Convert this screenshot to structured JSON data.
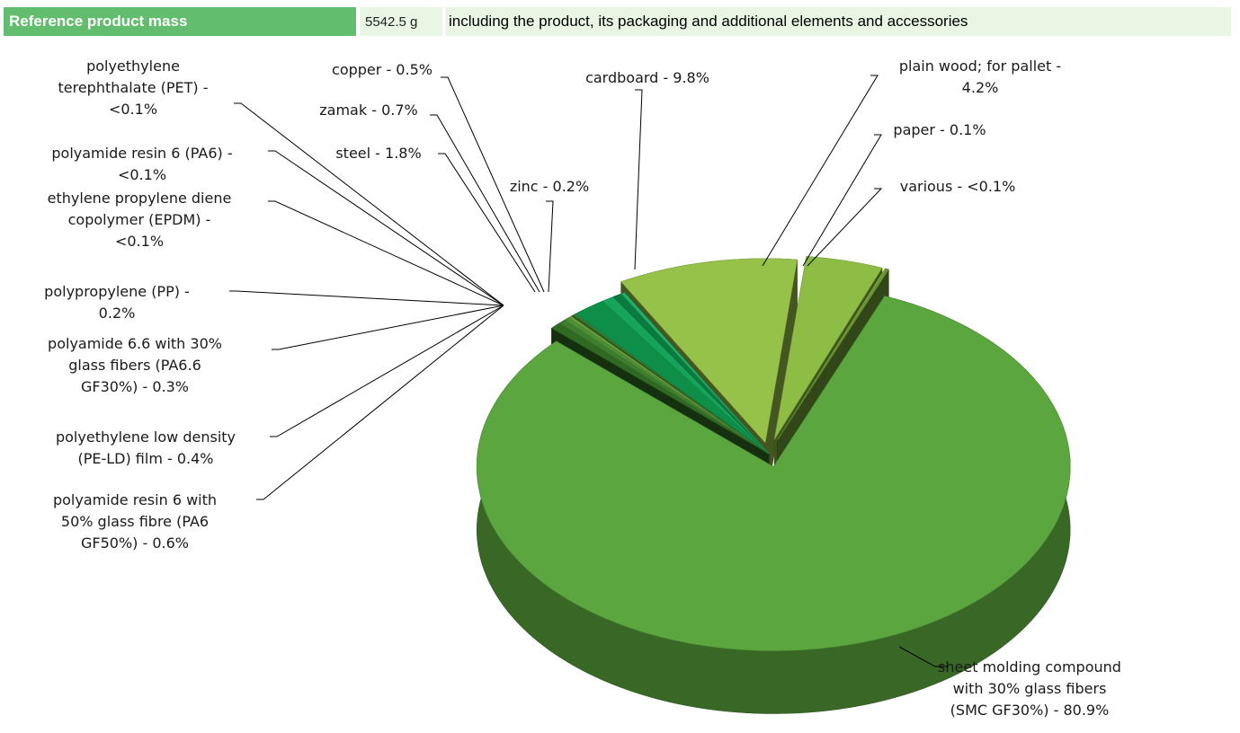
{
  "header": {
    "label": "Reference product mass",
    "value": "5542.5 g",
    "note": "including the product, its packaging and additional elements and accessories"
  },
  "chart_data": {
    "type": "pie",
    "title": "",
    "slices": [
      {
        "name": "sheet molding compound with 30% glass fibers (SMC GF30%)",
        "value": 80.9,
        "label_lines": [
          "sheet molding compound",
          "with 30% glass fibers",
          "(SMC GF30%)  - 80.9%"
        ],
        "color": "#5ba63e"
      },
      {
        "name": "polyamide resin 6 with 50% glass fibre (PA6 GF50%)",
        "value": 0.6,
        "label_lines": [
          "polyamide resin 6 with",
          "50% glass fibre (PA6",
          "GF50%)  - 0.6%"
        ],
        "color": "#2f6a22"
      },
      {
        "name": "polyethylene low density (PE-LD) film",
        "value": 0.4,
        "label_lines": [
          "polyethylene low density",
          "(PE-LD) film - 0.4%"
        ],
        "color": "#3e7c2e"
      },
      {
        "name": "polyamide 6.6 with 30% glass fibers (PA6.6 GF30%)",
        "value": 0.3,
        "label_lines": [
          "polyamide 6.6 with 30%",
          "glass fibers (PA6.6",
          "GF30%)  - 0.3%"
        ],
        "color": "#4a8e36"
      },
      {
        "name": "polypropylene (PP)",
        "value": 0.2,
        "label_lines": [
          "polypropylene (PP) -",
          "0.2%"
        ],
        "color": "#6a9d3a"
      },
      {
        "name": "ethylene propylene diene copolymer (EPDM)",
        "value": 0.1,
        "label_lines": [
          "ethylene propylene diene",
          "copolymer (EPDM) -",
          "<0.1%"
        ],
        "color": "#2a5a20"
      },
      {
        "name": "polyamide resin 6 (PA6)",
        "value": 0.1,
        "label_lines": [
          "polyamide resin 6 (PA6) -",
          "<0.1%"
        ],
        "color": "#38702a"
      },
      {
        "name": "polyethylene terephthalate (PET)",
        "value": 0.1,
        "label_lines": [
          "polyethylene",
          "terephthalate (PET) -",
          "<0.1%"
        ],
        "color": "#44823a"
      },
      {
        "name": "steel",
        "value": 1.8,
        "label_lines": [
          "steel - 1.8%"
        ],
        "color": "#0d8f4a"
      },
      {
        "name": "zamak",
        "value": 0.7,
        "label_lines": [
          "zamak - 0.7%"
        ],
        "color": "#16a35a"
      },
      {
        "name": "copper",
        "value": 0.5,
        "label_lines": [
          "copper - 0.5%"
        ],
        "color": "#0b7a3e"
      },
      {
        "name": "zinc",
        "value": 0.2,
        "label_lines": [
          "zinc - 0.2%"
        ],
        "color": "#1fb268"
      },
      {
        "name": "cardboard",
        "value": 9.8,
        "label_lines": [
          "cardboard - 9.8%"
        ],
        "color": "#97c24a"
      },
      {
        "name": "plain wood; for pallet",
        "value": 4.2,
        "label_lines": [
          "plain wood; for pallet -",
          "4.2%"
        ],
        "color": "#8dbd45"
      },
      {
        "name": "paper",
        "value": 0.1,
        "label_lines": [
          "paper - 0.1%"
        ],
        "color": "#7aa83c"
      },
      {
        "name": "various",
        "value": 0.1,
        "label_lines": [
          "various - <0.1%"
        ],
        "color": "#6f9d35"
      }
    ],
    "legend": "none"
  }
}
